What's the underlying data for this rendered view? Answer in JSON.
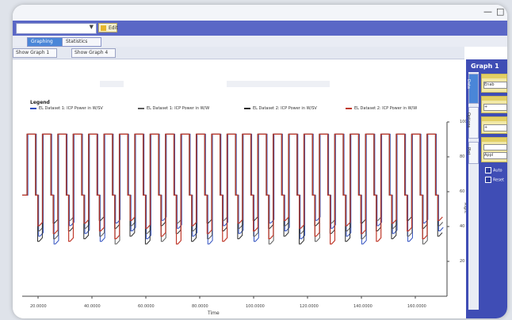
{
  "window": {
    "min_glyph": "—",
    "max_glyph": "□"
  },
  "toolbar": {
    "combo_value": "",
    "button_label": "Edit"
  },
  "tabs": [
    "Graphing",
    "Statistics"
  ],
  "subbar": {
    "buttons": [
      "Show Graph 1",
      "Show Graph 4"
    ]
  },
  "legend": {
    "title": "Legend",
    "items": [
      {
        "label": "EL Dataset 1: ICP Power in W/SV",
        "color": "#2f4fbf"
      },
      {
        "label": "EL Dataset 1: ICP Power in W/W",
        "color": "#5b5b5b"
      },
      {
        "label": "EL Dataset 2: ICP Power in W/SV",
        "color": "#2b2b2b"
      },
      {
        "label": "EL Dataset 2: ICP Power in W/W",
        "color": "#c0392b"
      }
    ]
  },
  "chart_data": {
    "type": "line",
    "xlabel": "Time",
    "ylabel": "Right",
    "x_ticks": [
      "20.0000",
      "40.0000",
      "60.0000",
      "80.0000",
      "100.0000",
      "120.0000",
      "140.0000",
      "160.0000"
    ],
    "y_ticks": [
      "100",
      "80",
      "60",
      "40",
      "20"
    ],
    "ylim": [
      0,
      100
    ],
    "xlim": [
      0,
      180
    ],
    "cycles": 27,
    "high_value": 93,
    "mid_value": 58,
    "low_value_range": [
      30,
      45
    ],
    "series": [
      {
        "name": "EL Dataset 1: ICP Power in W/SV",
        "color": "#2f4fbf"
      },
      {
        "name": "EL Dataset 1: ICP Power in W/W",
        "color": "#5b5b5b"
      },
      {
        "name": "EL Dataset 2: ICP Power in W/SV",
        "color": "#2b2b2b"
      },
      {
        "name": "EL Dataset 2: ICP Power in W/W",
        "color": "#c0392b"
      }
    ]
  },
  "right_panel": {
    "title": "Graph 1",
    "side_tabs": [
      "Data",
      "Options",
      "Plot"
    ],
    "props": [
      {
        "label": "Enab"
      },
      {
        "label": "+"
      },
      {
        "label": "+"
      },
      {
        "label": "Appl"
      }
    ],
    "options": [
      "Auto",
      "Reset"
    ]
  }
}
